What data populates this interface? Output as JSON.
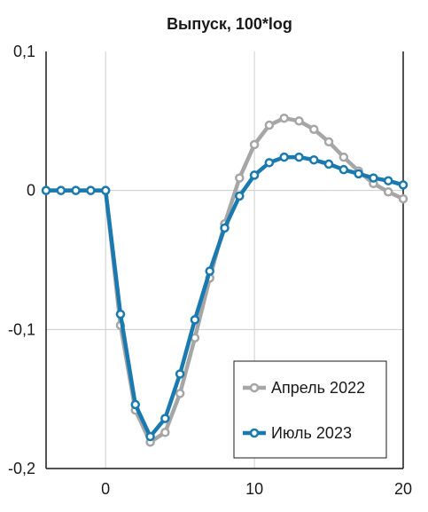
{
  "chart_data": {
    "type": "line",
    "title": "Выпуск, 100*log",
    "xlabel": "",
    "ylabel": "",
    "xlim": [
      -4,
      20
    ],
    "ylim": [
      -0.2,
      0.1
    ],
    "x_ticks": [
      0,
      10,
      20
    ],
    "x_tick_labels": [
      "0",
      "10",
      "20"
    ],
    "y_ticks": [
      0.1,
      0,
      -0.1,
      -0.2
    ],
    "y_tick_labels": [
      "0,1",
      "0",
      "-0,1",
      "-0,2"
    ],
    "grid": "x=0, x=10, y=0, y=-0.1",
    "legend_position": "bottom-right",
    "x": [
      -4,
      -3,
      -2,
      -1,
      0,
      1,
      2,
      3,
      4,
      5,
      6,
      7,
      8,
      9,
      10,
      11,
      12,
      13,
      14,
      15,
      16,
      17,
      18,
      19,
      20
    ],
    "series": [
      {
        "name": "Апрель 2022",
        "color": "#a6a6a6",
        "values": [
          0,
          0,
          0,
          0,
          0,
          -0.097,
          -0.158,
          -0.181,
          -0.174,
          -0.146,
          -0.106,
          -0.063,
          -0.024,
          0.009,
          0.033,
          0.047,
          0.052,
          0.05,
          0.044,
          0.035,
          0.024,
          0.014,
          0.005,
          -0.001,
          -0.006
        ]
      },
      {
        "name": "Июль 2023",
        "color": "#1a7ab0",
        "values": [
          0,
          0,
          0,
          0,
          0,
          -0.089,
          -0.154,
          -0.177,
          -0.164,
          -0.132,
          -0.093,
          -0.058,
          -0.027,
          -0.004,
          0.011,
          0.02,
          0.024,
          0.024,
          0.022,
          0.019,
          0.015,
          0.012,
          0.009,
          0.007,
          0.004
        ]
      }
    ]
  }
}
